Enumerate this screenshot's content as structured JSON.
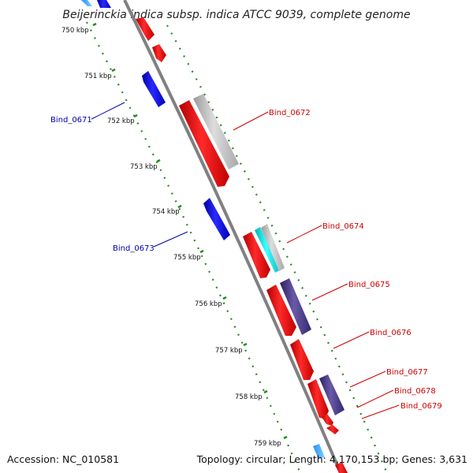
{
  "title": "Beijerinckia indica subsp. indica ATCC 9039, complete genome",
  "accession": "Accession: NC_010581",
  "summary": "Topology: circular; Length: 4,170,153 bp; Genes: 3,631",
  "colors": {
    "forward_cds": "#ff0000",
    "reverse_cds": "#0000ff",
    "rna": "#00e5e5",
    "grey_feature": "#c0c0c0",
    "dark_feature": "#4a3c8c",
    "backbone": "#808080",
    "tick": "#228b22",
    "label_forward": "#cc0000",
    "label_reverse": "#0000aa"
  },
  "ticks": [
    "750 kbp",
    "751 kbp",
    "752 kbp",
    "753 kbp",
    "754 kbp",
    "755 kbp",
    "756 kbp",
    "757 kbp",
    "758 kbp",
    "759 kbp"
  ],
  "labels": {
    "forward": [
      "Bind_0672",
      "Bind_0674",
      "Bind_0675",
      "Bind_0676",
      "Bind_0677",
      "Bind_0678",
      "Bind_0679"
    ],
    "reverse": [
      "Bind_0671",
      "Bind_0673"
    ]
  }
}
